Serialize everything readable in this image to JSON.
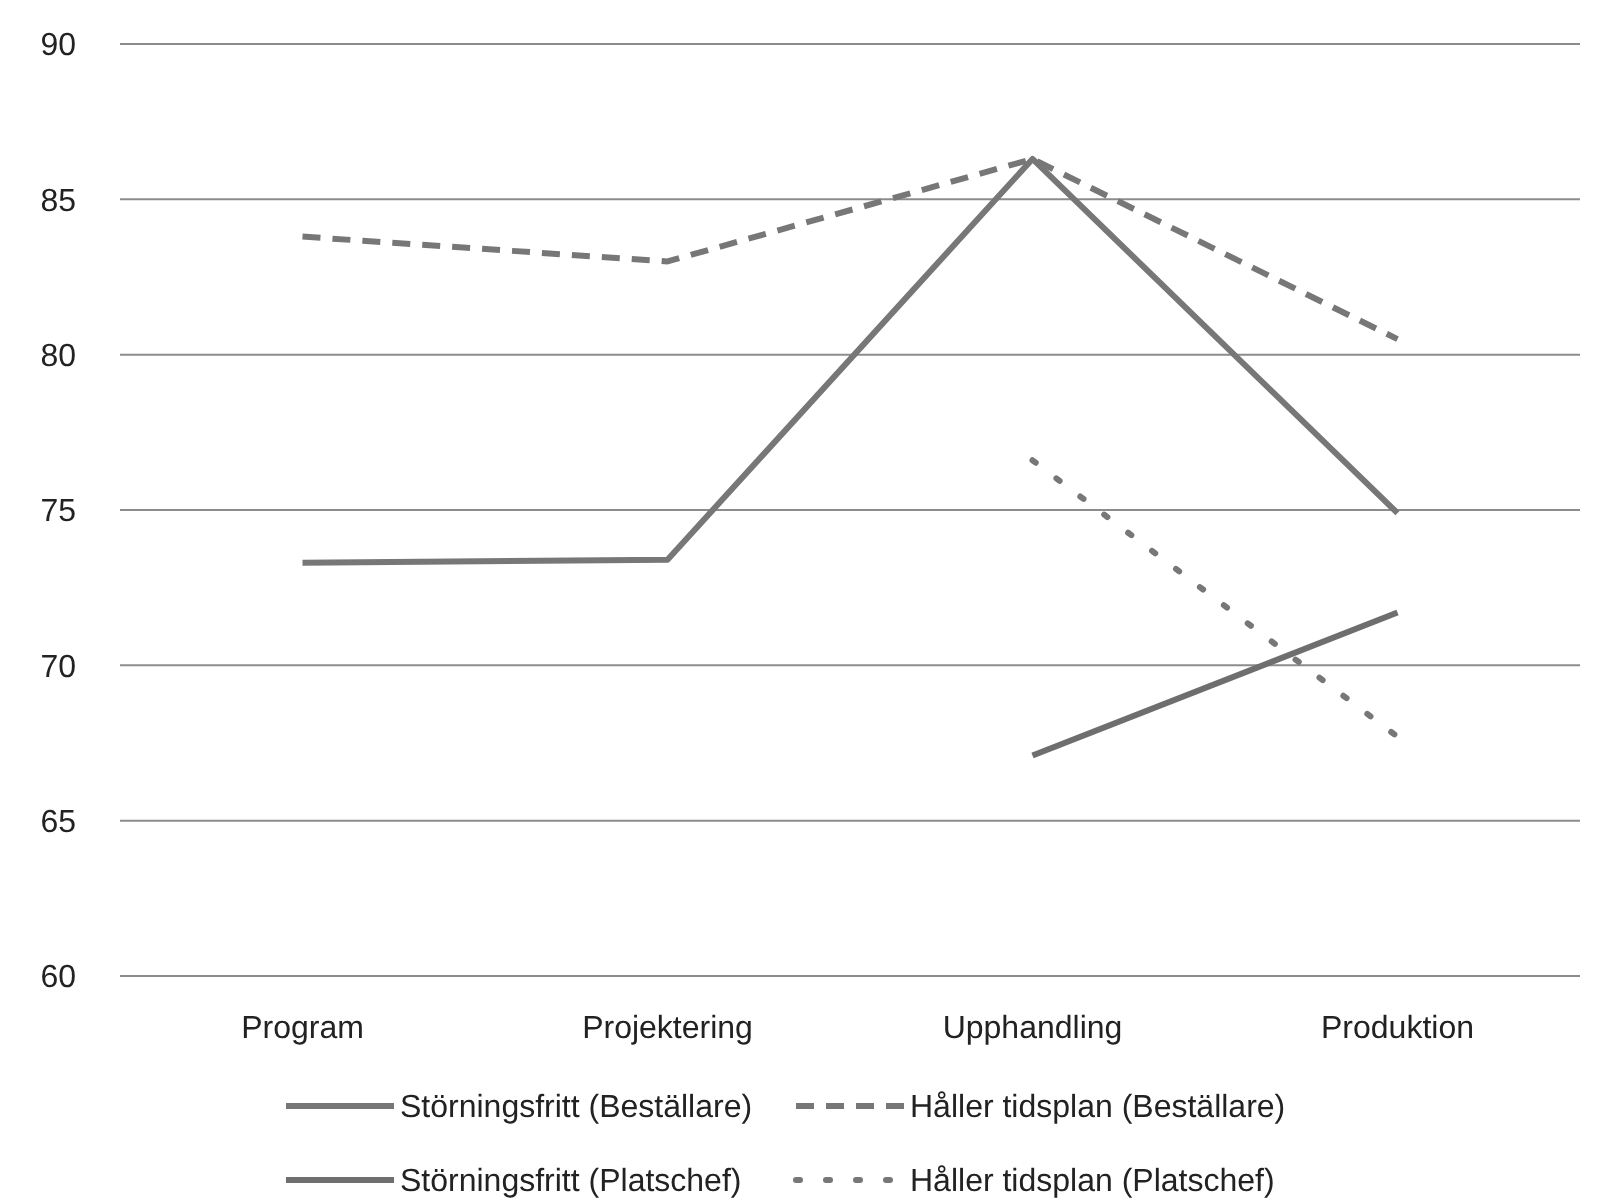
{
  "chart_data": {
    "type": "line",
    "categories": [
      "Program",
      "Projektering",
      "Upphandling",
      "Produktion"
    ],
    "series": [
      {
        "name": "Störningsfritt (Beställare)",
        "color": "#777777",
        "line_style": "solid",
        "values": [
          73.3,
          73.4,
          86.3,
          74.9
        ]
      },
      {
        "name": "Håller tidsplan (Beställare)",
        "color": "#777777",
        "line_style": "dashed",
        "values": [
          83.8,
          83.0,
          86.3,
          80.5
        ]
      },
      {
        "name": "Störningsfritt (Platschef)",
        "color": "#6e6e6e",
        "line_style": "solid",
        "values": [
          null,
          null,
          67.1,
          71.7
        ]
      },
      {
        "name": "Håller tidsplan (Platschef)",
        "color": "#777777",
        "line_style": "dotted",
        "values": [
          null,
          null,
          76.6,
          67.7
        ]
      }
    ],
    "ylim": [
      60,
      90
    ],
    "yticks": [
      60,
      65,
      70,
      75,
      80,
      85,
      90
    ],
    "grid": "y",
    "legend": "bottom"
  }
}
